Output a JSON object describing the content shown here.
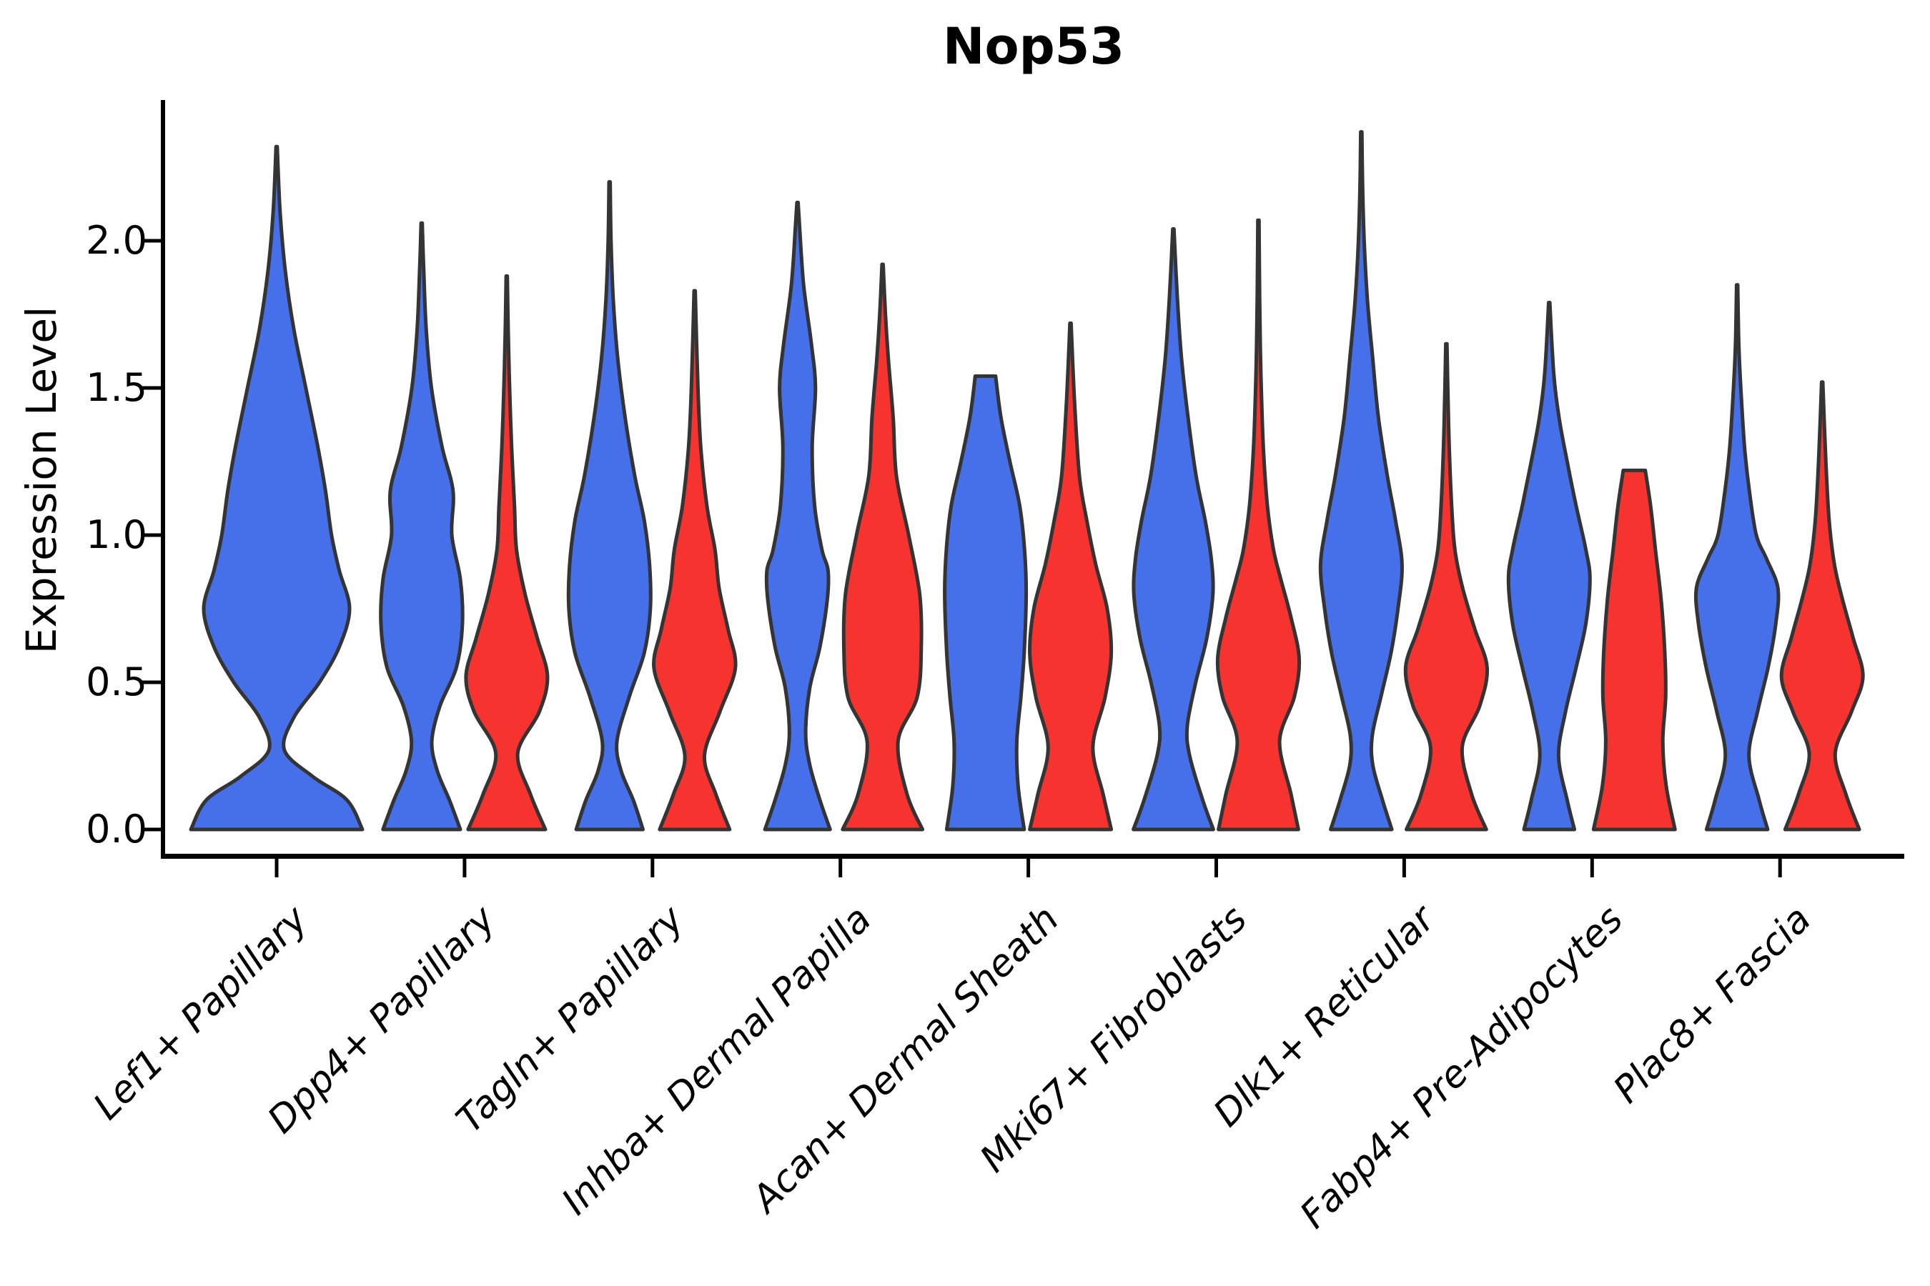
{
  "chart_data": {
    "type": "violin",
    "title": "Nop53",
    "ylabel": "Expression Level",
    "xlabel": "",
    "ylim": [
      0,
      2.48
    ],
    "grid": false,
    "legend": null,
    "background_color": "#ffffff",
    "text_color": "#000000",
    "edge_color": "#343434",
    "series_colors": {
      "blue": "#4570EA",
      "red": "#F7332F"
    },
    "yticks": [
      {
        "value": 0.0,
        "label": "0.0"
      },
      {
        "value": 0.5,
        "label": "0.5"
      },
      {
        "value": 1.0,
        "label": "1.0"
      },
      {
        "value": 1.5,
        "label": "1.5"
      },
      {
        "value": 2.0,
        "label": "2.0"
      }
    ],
    "categories": [
      "Lef1+ Papillary",
      "Dpp4+ Papillary",
      "Tagln+ Papillary",
      "Inhba+ Dermal Papilla",
      "Acan+ Dermal Sheath",
      "Mki67+ Fibroblasts",
      "Dlk1+ Reticular",
      "Fabp4+ Pre-Adipocytes",
      "Plac8+ Fascia"
    ],
    "series": [
      {
        "name": "blue",
        "color": "#4570EA",
        "peak_expression": [
          2.32,
          2.06,
          2.2,
          2.13,
          1.54,
          2.04,
          2.37,
          1.79,
          1.85
        ]
      },
      {
        "name": "red",
        "color": "#F7332F",
        "peak_expression": [
          null,
          1.88,
          1.83,
          1.92,
          1.72,
          2.07,
          1.65,
          1.22,
          1.52
        ]
      }
    ],
    "violins": [
      {
        "category": "Lef1+ Papillary",
        "blue": {
          "peak": 2.32,
          "flat_top": false,
          "wide_single": true,
          "profile": [
            [
              0,
              1.0
            ],
            [
              0.1,
              0.82
            ],
            [
              0.18,
              0.42
            ],
            [
              0.27,
              0.09
            ],
            [
              0.38,
              0.2
            ],
            [
              0.5,
              0.5
            ],
            [
              0.62,
              0.73
            ],
            [
              0.75,
              0.85
            ],
            [
              0.88,
              0.73
            ],
            [
              1.0,
              0.64
            ],
            [
              1.15,
              0.57
            ],
            [
              1.3,
              0.48
            ],
            [
              1.5,
              0.34
            ],
            [
              1.7,
              0.2
            ],
            [
              1.9,
              0.1
            ],
            [
              2.1,
              0.04
            ],
            [
              2.32,
              0.006
            ]
          ]
        },
        "red": null
      },
      {
        "category": "Dpp4+ Papillary",
        "blue": {
          "peak": 2.06,
          "flat_top": false,
          "profile": [
            [
              0,
              0.95
            ],
            [
              0.1,
              0.68
            ],
            [
              0.2,
              0.38
            ],
            [
              0.3,
              0.25
            ],
            [
              0.42,
              0.45
            ],
            [
              0.55,
              0.85
            ],
            [
              0.7,
              1.0
            ],
            [
              0.85,
              0.95
            ],
            [
              1.0,
              0.74
            ],
            [
              1.15,
              0.77
            ],
            [
              1.3,
              0.5
            ],
            [
              1.5,
              0.24
            ],
            [
              1.7,
              0.11
            ],
            [
              1.9,
              0.05
            ],
            [
              2.06,
              0.006
            ]
          ]
        },
        "red": {
          "peak": 1.88,
          "flat_top": false,
          "profile": [
            [
              0,
              0.95
            ],
            [
              0.12,
              0.58
            ],
            [
              0.26,
              0.27
            ],
            [
              0.4,
              0.8
            ],
            [
              0.52,
              1.0
            ],
            [
              0.65,
              0.75
            ],
            [
              0.8,
              0.45
            ],
            [
              0.95,
              0.24
            ],
            [
              1.1,
              0.19
            ],
            [
              1.3,
              0.12
            ],
            [
              1.5,
              0.07
            ],
            [
              1.7,
              0.035
            ],
            [
              1.88,
              0.006
            ]
          ]
        }
      },
      {
        "category": "Tagln+ Papillary",
        "blue": {
          "peak": 2.2,
          "flat_top": false,
          "profile": [
            [
              0,
              0.82
            ],
            [
              0.1,
              0.58
            ],
            [
              0.2,
              0.28
            ],
            [
              0.3,
              0.18
            ],
            [
              0.45,
              0.48
            ],
            [
              0.6,
              0.85
            ],
            [
              0.75,
              1.0
            ],
            [
              0.9,
              0.98
            ],
            [
              1.05,
              0.85
            ],
            [
              1.2,
              0.62
            ],
            [
              1.4,
              0.38
            ],
            [
              1.6,
              0.2
            ],
            [
              1.8,
              0.09
            ],
            [
              2.0,
              0.035
            ],
            [
              2.2,
              0.006
            ]
          ]
        },
        "red": {
          "peak": 1.83,
          "flat_top": false,
          "profile": [
            [
              0,
              0.86
            ],
            [
              0.12,
              0.52
            ],
            [
              0.25,
              0.24
            ],
            [
              0.4,
              0.62
            ],
            [
              0.55,
              1.0
            ],
            [
              0.68,
              0.82
            ],
            [
              0.82,
              0.6
            ],
            [
              0.95,
              0.5
            ],
            [
              1.1,
              0.3
            ],
            [
              1.3,
              0.15
            ],
            [
              1.5,
              0.08
            ],
            [
              1.83,
              0.006
            ]
          ]
        }
      },
      {
        "category": "Inhba+ Dermal Papilla",
        "blue": {
          "peak": 2.13,
          "flat_top": false,
          "profile": [
            [
              0,
              0.8
            ],
            [
              0.1,
              0.55
            ],
            [
              0.22,
              0.3
            ],
            [
              0.33,
              0.2
            ],
            [
              0.48,
              0.3
            ],
            [
              0.62,
              0.55
            ],
            [
              0.78,
              0.73
            ],
            [
              0.88,
              0.75
            ],
            [
              0.95,
              0.6
            ],
            [
              1.1,
              0.42
            ],
            [
              1.3,
              0.36
            ],
            [
              1.5,
              0.44
            ],
            [
              1.65,
              0.34
            ],
            [
              1.85,
              0.15
            ],
            [
              2.05,
              0.05
            ],
            [
              2.13,
              0.006
            ]
          ]
        },
        "red": {
          "peak": 1.92,
          "flat_top": false,
          "profile": [
            [
              0,
              0.98
            ],
            [
              0.12,
              0.6
            ],
            [
              0.3,
              0.38
            ],
            [
              0.45,
              0.85
            ],
            [
              0.62,
              0.95
            ],
            [
              0.8,
              0.91
            ],
            [
              1.0,
              0.64
            ],
            [
              1.2,
              0.34
            ],
            [
              1.4,
              0.26
            ],
            [
              1.6,
              0.14
            ],
            [
              1.75,
              0.07
            ],
            [
              1.92,
              0.006
            ]
          ]
        }
      },
      {
        "category": "Acan+ Dermal Sheath",
        "blue": {
          "peak": 1.54,
          "flat_top": true,
          "profile": [
            [
              0,
              0.95
            ],
            [
              0.15,
              0.8
            ],
            [
              0.3,
              0.77
            ],
            [
              0.45,
              0.87
            ],
            [
              0.6,
              0.95
            ],
            [
              0.8,
              1.0
            ],
            [
              0.95,
              0.96
            ],
            [
              1.1,
              0.84
            ],
            [
              1.25,
              0.6
            ],
            [
              1.4,
              0.38
            ],
            [
              1.54,
              0.25
            ]
          ]
        },
        "red": {
          "peak": 1.72,
          "flat_top": false,
          "profile": [
            [
              0,
              1.0
            ],
            [
              0.12,
              0.8
            ],
            [
              0.28,
              0.55
            ],
            [
              0.45,
              0.85
            ],
            [
              0.6,
              1.0
            ],
            [
              0.75,
              0.9
            ],
            [
              0.9,
              0.62
            ],
            [
              1.05,
              0.4
            ],
            [
              1.2,
              0.22
            ],
            [
              1.45,
              0.1
            ],
            [
              1.72,
              0.006
            ]
          ]
        }
      },
      {
        "category": "Mki67+ Fibroblasts",
        "blue": {
          "peak": 2.04,
          "flat_top": false,
          "profile": [
            [
              0,
              0.98
            ],
            [
              0.1,
              0.72
            ],
            [
              0.25,
              0.4
            ],
            [
              0.35,
              0.34
            ],
            [
              0.5,
              0.55
            ],
            [
              0.65,
              0.82
            ],
            [
              0.8,
              0.97
            ],
            [
              0.92,
              0.93
            ],
            [
              1.05,
              0.78
            ],
            [
              1.2,
              0.56
            ],
            [
              1.4,
              0.36
            ],
            [
              1.6,
              0.2
            ],
            [
              1.8,
              0.1
            ],
            [
              2.04,
              0.006
            ]
          ]
        },
        "red": {
          "peak": 2.07,
          "flat_top": false,
          "profile": [
            [
              0,
              0.98
            ],
            [
              0.12,
              0.8
            ],
            [
              0.3,
              0.52
            ],
            [
              0.45,
              0.88
            ],
            [
              0.58,
              1.0
            ],
            [
              0.72,
              0.8
            ],
            [
              0.85,
              0.55
            ],
            [
              0.95,
              0.37
            ],
            [
              1.1,
              0.22
            ],
            [
              1.3,
              0.12
            ],
            [
              1.55,
              0.06
            ],
            [
              1.8,
              0.03
            ],
            [
              2.07,
              0.006
            ]
          ]
        }
      },
      {
        "category": "Dlk1+ Reticular",
        "blue": {
          "peak": 2.37,
          "flat_top": false,
          "profile": [
            [
              0,
              0.75
            ],
            [
              0.1,
              0.52
            ],
            [
              0.22,
              0.28
            ],
            [
              0.32,
              0.27
            ],
            [
              0.45,
              0.48
            ],
            [
              0.6,
              0.73
            ],
            [
              0.75,
              0.9
            ],
            [
              0.9,
              1.0
            ],
            [
              1.05,
              0.84
            ],
            [
              1.2,
              0.64
            ],
            [
              1.4,
              0.42
            ],
            [
              1.6,
              0.28
            ],
            [
              1.8,
              0.15
            ],
            [
              2.0,
              0.07
            ],
            [
              2.2,
              0.03
            ],
            [
              2.37,
              0.006
            ]
          ]
        },
        "red": {
          "peak": 1.65,
          "flat_top": false,
          "profile": [
            [
              0,
              0.98
            ],
            [
              0.12,
              0.62
            ],
            [
              0.28,
              0.39
            ],
            [
              0.42,
              0.82
            ],
            [
              0.55,
              1.0
            ],
            [
              0.68,
              0.7
            ],
            [
              0.82,
              0.4
            ],
            [
              0.95,
              0.21
            ],
            [
              1.1,
              0.13
            ],
            [
              1.3,
              0.07
            ],
            [
              1.5,
              0.035
            ],
            [
              1.65,
              0.006
            ]
          ]
        }
      },
      {
        "category": "Fabp4+ Pre-Adipocytes",
        "blue": {
          "peak": 1.79,
          "flat_top": false,
          "profile": [
            [
              0,
              0.62
            ],
            [
              0.1,
              0.44
            ],
            [
              0.25,
              0.23
            ],
            [
              0.4,
              0.4
            ],
            [
              0.55,
              0.66
            ],
            [
              0.7,
              0.9
            ],
            [
              0.85,
              1.0
            ],
            [
              0.95,
              0.9
            ],
            [
              1.1,
              0.66
            ],
            [
              1.25,
              0.44
            ],
            [
              1.4,
              0.24
            ],
            [
              1.55,
              0.11
            ],
            [
              1.79,
              0.006
            ]
          ]
        },
        "red": {
          "peak": 1.22,
          "flat_top": true,
          "profile": [
            [
              0,
              1.0
            ],
            [
              0.15,
              0.78
            ],
            [
              0.3,
              0.7
            ],
            [
              0.45,
              0.77
            ],
            [
              0.6,
              0.75
            ],
            [
              0.78,
              0.66
            ],
            [
              0.95,
              0.52
            ],
            [
              1.1,
              0.4
            ],
            [
              1.22,
              0.27
            ]
          ]
        }
      },
      {
        "category": "Plac8+ Fascia",
        "blue": {
          "peak": 1.85,
          "flat_top": false,
          "profile": [
            [
              0,
              0.75
            ],
            [
              0.1,
              0.54
            ],
            [
              0.25,
              0.29
            ],
            [
              0.4,
              0.5
            ],
            [
              0.55,
              0.76
            ],
            [
              0.7,
              0.95
            ],
            [
              0.82,
              1.0
            ],
            [
              0.92,
              0.72
            ],
            [
              1.0,
              0.47
            ],
            [
              1.15,
              0.3
            ],
            [
              1.3,
              0.18
            ],
            [
              1.5,
              0.09
            ],
            [
              1.65,
              0.04
            ],
            [
              1.85,
              0.006
            ]
          ]
        },
        "red": {
          "peak": 1.52,
          "flat_top": false,
          "profile": [
            [
              0,
              0.91
            ],
            [
              0.12,
              0.58
            ],
            [
              0.26,
              0.32
            ],
            [
              0.4,
              0.72
            ],
            [
              0.52,
              1.0
            ],
            [
              0.65,
              0.76
            ],
            [
              0.78,
              0.5
            ],
            [
              0.9,
              0.3
            ],
            [
              1.05,
              0.17
            ],
            [
              1.25,
              0.09
            ],
            [
              1.52,
              0.006
            ]
          ]
        }
      }
    ]
  }
}
